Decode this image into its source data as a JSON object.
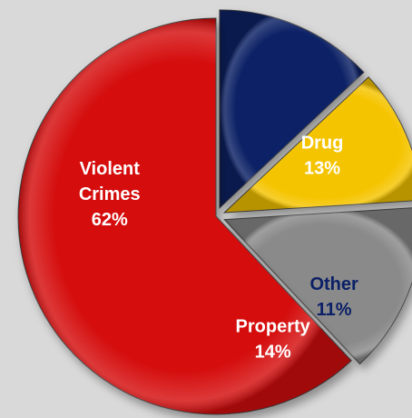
{
  "chart_data": {
    "type": "pie",
    "title": "",
    "legend": "none",
    "slices": [
      {
        "name": "Drug",
        "value": 13,
        "label": "13%",
        "color": "#0b2066",
        "text_color": "#ffffff"
      },
      {
        "name": "Other",
        "value": 11,
        "label": "11%",
        "color": "#f5c400",
        "text_color": "#0b2066"
      },
      {
        "name": "Property",
        "value": 14,
        "label": "14%",
        "color": "#8a8a8a",
        "text_color": "#ffffff"
      },
      {
        "name": "Violent Crimes",
        "value": 62,
        "label": "62%",
        "color": "#d50f0f",
        "text_color": "#ffffff"
      }
    ]
  }
}
